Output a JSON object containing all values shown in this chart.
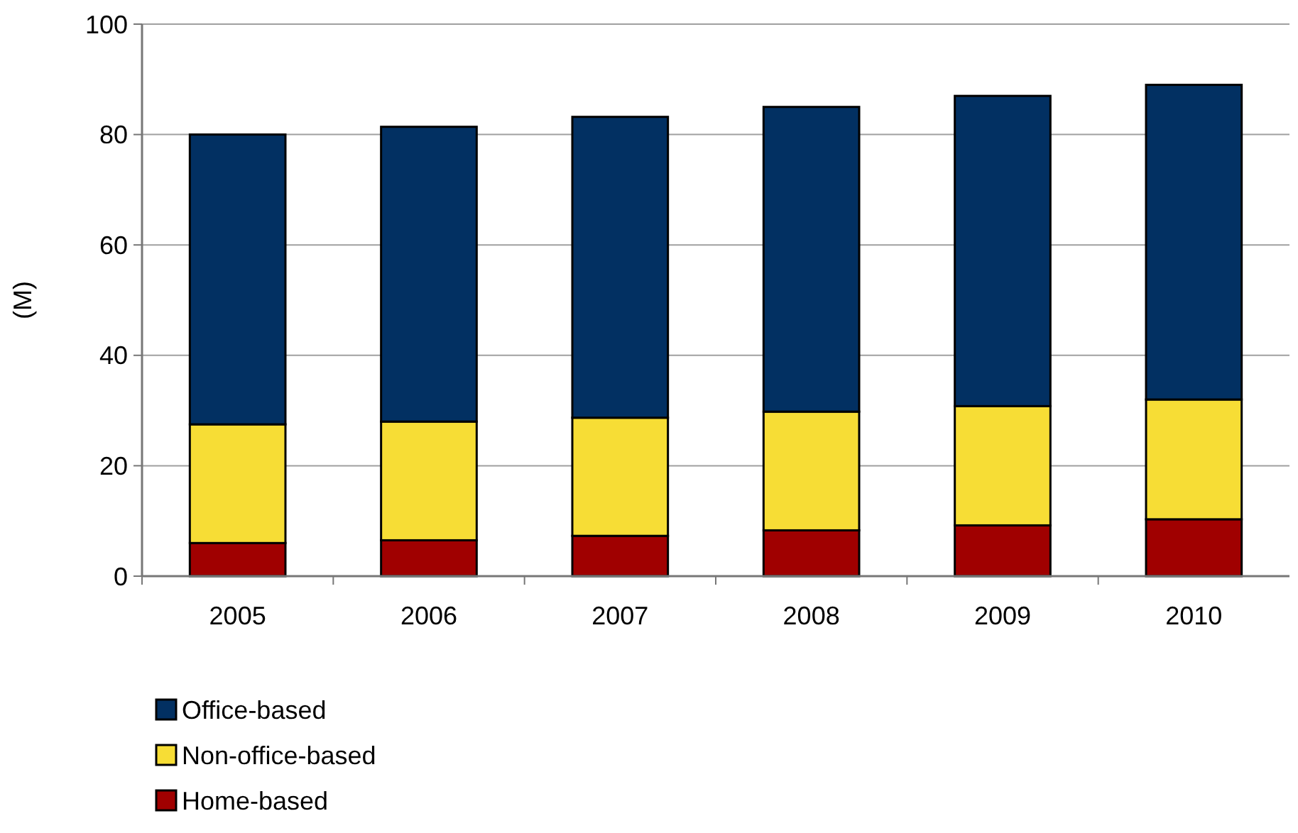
{
  "chart_data": {
    "type": "bar",
    "stacked": true,
    "ylabel": "(M)",
    "categories": [
      "2005",
      "2006",
      "2007",
      "2008",
      "2009",
      "2010"
    ],
    "series": [
      {
        "name": "Home-based",
        "color": "#a00000",
        "values": [
          6,
          6.5,
          7.3,
          8.3,
          9.2,
          10.3
        ]
      },
      {
        "name": "Non-office-based",
        "color": "#f7dd35",
        "values": [
          21.5,
          21.5,
          21.4,
          21.5,
          21.6,
          21.7
        ]
      },
      {
        "name": "Office-based",
        "color": "#023062",
        "values": [
          52.5,
          53.4,
          54.5,
          55.2,
          56.2,
          57
        ]
      }
    ],
    "ylim": [
      0,
      100
    ],
    "yticks": [
      0,
      20,
      40,
      60,
      80,
      100
    ],
    "grid": "y",
    "legend": "bottom"
  }
}
